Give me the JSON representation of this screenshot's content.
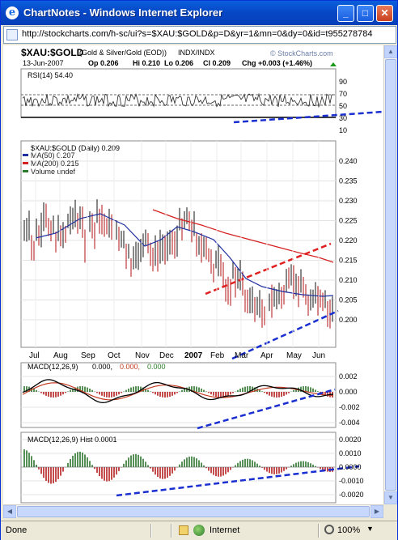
{
  "window": {
    "title": "ChartNotes - Windows Internet Explorer",
    "minimize": "_",
    "maximize": "□",
    "close": "✕",
    "url": "http://stockcharts.com/h-sc/ui?s=$XAU:$GOLD&p=D&yr=1&mn=0&dy=0&id=t955278784"
  },
  "chart_header": {
    "symbol": "$XAU:$GOLD",
    "description": "(Gold & Silver/Gold (EOD))",
    "exchange": "INDX/INDX",
    "date": "13-Jun-2007",
    "open": "Op 0.206",
    "high": "Hi 0.210",
    "low": "Lo 0.206",
    "close": "Cl 0.209",
    "change": "Chg +0.003 (+1.46%)",
    "brand": "© StockCharts.com"
  },
  "rsi_panel": {
    "label": "RSI(14) 54.40",
    "ticks": [
      "90",
      "70",
      "50",
      "30",
      "10"
    ]
  },
  "price_panel": {
    "label": "$XAU:$GOLD (Daily) 0.209",
    "legend": [
      {
        "text": "MA(50) 0.207",
        "color": "#1f2fa0"
      },
      {
        "text": "MA(200) 0.215",
        "color": "#d62020"
      },
      {
        "text": "Volume undef",
        "color": "#2a7a2a"
      }
    ],
    "ticks": [
      "0.240",
      "0.235",
      "0.230",
      "0.225",
      "0.220",
      "0.215",
      "0.210",
      "0.205",
      "0.200"
    ]
  },
  "months": [
    "Jul",
    "Aug",
    "Sep",
    "Oct",
    "Nov",
    "Dec",
    "2007",
    "Feb",
    "Mar",
    "Apr",
    "May",
    "Jun"
  ],
  "macd_panel": {
    "label_prefix": "MACD(12,26,9)",
    "v1": "0.000,",
    "v2": "0.000,",
    "v3": "0.000",
    "ticks": [
      "0.002",
      "0.000",
      "-0.002",
      "-0.004"
    ]
  },
  "hist_panel": {
    "label": "MACD(12,26,9) Hist 0.0001",
    "ticks": [
      "0.0020",
      "0.0010",
      "0.0000",
      "-0.0010",
      "-0.0020"
    ]
  },
  "status": {
    "text": "Done",
    "zone": "Internet",
    "zoom": "100%"
  },
  "colors": {
    "title_bar": "#0646c6",
    "ma50": "#1f2fa0",
    "ma200": "#d62020",
    "trendline_blue": "#1a2fd0",
    "trendline_red": "#e02020"
  }
}
